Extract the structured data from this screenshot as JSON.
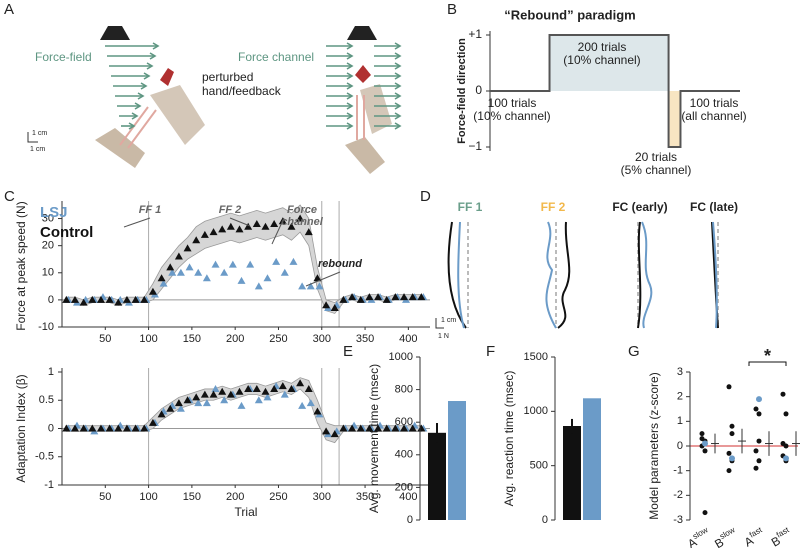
{
  "panel_labels": [
    "A",
    "B",
    "C",
    "D",
    "E",
    "F",
    "G"
  ],
  "diagrams": {
    "A": {
      "force_field": "Force-field",
      "perturbed": [
        "perturbed",
        "hand/feedback"
      ],
      "force_channel": "Force channel",
      "scale": [
        "1 cm",
        "1 cm"
      ]
    },
    "D": {
      "titles": [
        "FF 1",
        "FF 2",
        "FC (early)",
        "FC (late)"
      ],
      "scale": [
        "1 cm",
        "1 N"
      ]
    }
  },
  "chart_data": [
    {
      "type": "step",
      "title": "“Rebound” paradigm",
      "y_label": "Force-field direction",
      "x": [
        0,
        100,
        100,
        300,
        300,
        320,
        320,
        420
      ],
      "values": [
        0,
        0,
        1,
        1,
        -1,
        -1,
        0,
        0
      ],
      "xlim": [
        0,
        420
      ],
      "ylim": [
        -1,
        1
      ],
      "yticks": [
        {
          "value": -1,
          "label": "−1"
        },
        0,
        {
          "value": 1,
          "label": "+1"
        }
      ],
      "color": "#555",
      "annotations": [
        [
          "100 trials",
          "(10% channel)"
        ],
        [
          "200 trials",
          "(10% channel)"
        ],
        [
          "20 trials",
          "(5% channel)"
        ],
        [
          "100 trials",
          "(all channel)"
        ]
      ]
    },
    {
      "type": "scatter",
      "y_label": "Force at peak speed (N)",
      "x": [
        5,
        15,
        25,
        35,
        45,
        55,
        65,
        75,
        85,
        95,
        105,
        115,
        125,
        135,
        145,
        155,
        165,
        175,
        185,
        195,
        205,
        215,
        225,
        235,
        245,
        255,
        265,
        275,
        285,
        295,
        305,
        315,
        325,
        335,
        345,
        355,
        365,
        375,
        385,
        395,
        405,
        415
      ],
      "series": [
        {
          "name": "LSJ",
          "color": "#6b9bc8",
          "values": [
            0,
            -1,
            0,
            0,
            1,
            0,
            0,
            -1,
            0,
            0,
            2,
            6,
            10,
            10,
            12,
            10,
            8,
            13,
            10,
            13,
            7,
            13,
            5,
            8,
            14,
            10,
            14,
            5,
            5,
            5,
            -3,
            -2,
            0,
            1,
            0,
            0,
            1,
            0,
            1,
            0,
            1,
            1
          ]
        },
        {
          "name": "Control",
          "color": "#111111",
          "values": [
            0,
            0,
            -1,
            0,
            0,
            0,
            -1,
            0,
            0,
            0,
            3,
            8,
            12,
            16,
            19,
            22,
            24,
            25,
            26,
            27,
            26,
            27,
            28,
            27,
            28,
            29,
            27,
            30,
            25,
            8,
            -2,
            -3,
            0,
            1,
            0,
            1,
            1,
            0,
            1,
            1,
            1,
            1
          ]
        }
      ],
      "band": {
        "lower": [
          -1,
          -1,
          -2,
          -1,
          -1,
          -1,
          -2,
          -1,
          -1,
          -1,
          0,
          4,
          8,
          12,
          15,
          17,
          19,
          20,
          21,
          22,
          21,
          22,
          23,
          22,
          23,
          24,
          22,
          25,
          20,
          4,
          -4,
          -5,
          -1,
          0,
          -1,
          0,
          0,
          -1,
          0,
          0,
          0,
          0
        ],
        "upper": [
          1,
          1,
          0,
          1,
          1,
          1,
          0,
          1,
          1,
          1,
          6,
          12,
          16,
          20,
          23,
          27,
          29,
          30,
          31,
          32,
          31,
          32,
          33,
          32,
          33,
          34,
          32,
          35,
          30,
          12,
          0,
          -1,
          1,
          2,
          1,
          2,
          2,
          1,
          2,
          2,
          2,
          2
        ]
      },
      "xlim": [
        0,
        425
      ],
      "xticks": [
        50,
        100,
        150,
        200,
        250,
        300,
        350,
        400
      ],
      "ylim": [
        -10,
        35
      ],
      "yticks": [
        -10,
        0,
        10,
        20,
        30
      ],
      "vlines": [
        100,
        300,
        320
      ],
      "annotations": [
        [
          "FF 1"
        ],
        [
          "FF 2"
        ],
        [
          "Force",
          "channel"
        ],
        [
          "rebound"
        ]
      ]
    },
    {
      "type": "scatter",
      "y_label": "Adaptation Index (β)",
      "x_label": "Trial",
      "x": [
        5,
        15,
        25,
        35,
        45,
        55,
        65,
        75,
        85,
        95,
        105,
        115,
        125,
        135,
        145,
        155,
        165,
        175,
        185,
        195,
        205,
        215,
        225,
        235,
        245,
        255,
        265,
        275,
        285,
        295,
        305,
        315,
        325,
        335,
        345,
        355,
        365,
        375,
        385,
        395,
        405,
        415
      ],
      "series": [
        {
          "color": "#6b9bc8",
          "values": [
            0,
            0.05,
            0,
            -0.05,
            0,
            0,
            0.05,
            0,
            0,
            0,
            0.1,
            0.3,
            0.4,
            0.35,
            0.5,
            0.45,
            0.45,
            0.7,
            0.5,
            0.6,
            0.4,
            0.7,
            0.5,
            0.55,
            0.75,
            0.6,
            0.7,
            0.4,
            0.45,
            0.25,
            -0.1,
            -0.05,
            0,
            0.05,
            0,
            0,
            0.05,
            0,
            0,
            0,
            0.05,
            0
          ]
        },
        {
          "color": "#111111",
          "values": [
            0,
            0,
            0,
            0,
            0,
            0,
            0,
            0,
            0,
            0,
            0.1,
            0.25,
            0.35,
            0.45,
            0.5,
            0.55,
            0.6,
            0.6,
            0.65,
            0.6,
            0.65,
            0.7,
            0.7,
            0.65,
            0.7,
            0.75,
            0.7,
            0.8,
            0.7,
            0.3,
            -0.05,
            -0.1,
            0,
            0,
            0,
            0,
            0,
            0,
            0,
            0,
            0,
            0
          ]
        }
      ],
      "band": {
        "lower": [
          -0.05,
          -0.05,
          -0.05,
          -0.05,
          -0.05,
          -0.05,
          -0.05,
          -0.05,
          -0.05,
          -0.05,
          0,
          0.15,
          0.25,
          0.35,
          0.4,
          0.45,
          0.5,
          0.5,
          0.55,
          0.5,
          0.55,
          0.6,
          0.6,
          0.55,
          0.6,
          0.65,
          0.6,
          0.7,
          0.55,
          0.1,
          -0.2,
          -0.25,
          -0.05,
          -0.05,
          -0.05,
          -0.05,
          -0.05,
          -0.05,
          -0.05,
          -0.05,
          -0.05,
          -0.05
        ],
        "upper": [
          0.05,
          0.05,
          0.05,
          0.05,
          0.05,
          0.05,
          0.05,
          0.05,
          0.05,
          0.05,
          0.2,
          0.35,
          0.45,
          0.55,
          0.6,
          0.65,
          0.7,
          0.7,
          0.75,
          0.7,
          0.75,
          0.8,
          0.8,
          0.75,
          0.8,
          0.85,
          0.8,
          0.9,
          0.85,
          0.5,
          0.1,
          0.05,
          0.05,
          0.05,
          0.05,
          0.05,
          0.05,
          0.05,
          0.05,
          0.05,
          0.05,
          0.05
        ]
      },
      "xlim": [
        0,
        425
      ],
      "xticks": [
        50,
        100,
        150,
        200,
        250,
        300,
        350,
        400
      ],
      "ylim": [
        -1,
        1
      ],
      "yticks": [
        -1,
        -0.5,
        0,
        0.5,
        1
      ],
      "vlines": [
        100,
        300,
        320
      ]
    },
    {
      "type": "bar",
      "y_label": "Avg. movement time (msec)",
      "categories": [
        null,
        null
      ],
      "values": [
        535,
        730
      ],
      "errors": [
        60,
        null
      ],
      "colors": [
        "#111111",
        "#6b9bc8"
      ],
      "ylim": [
        0,
        1000
      ],
      "yticks": [
        0,
        200,
        400,
        600,
        800,
        1000
      ]
    },
    {
      "type": "bar",
      "y_label": "Avg. reaction time (msec)",
      "categories": [
        null,
        null
      ],
      "values": [
        865,
        1120
      ],
      "errors": [
        65,
        null
      ],
      "colors": [
        "#111111",
        "#6b9bc8"
      ],
      "ylim": [
        0,
        1500
      ],
      "yticks": [
        0,
        500,
        1000,
        1500
      ]
    },
    {
      "type": "dot",
      "y_label": "Model parameters (z-score)",
      "categories": [
        {
          "base": "A",
          "sup": "slow"
        },
        {
          "base": "B",
          "sup": "slow"
        },
        {
          "base": "A",
          "sup": "fast"
        },
        {
          "base": "B",
          "sup": "fast"
        }
      ],
      "series": [
        {
          "color": "#111111",
          "values": [
            [
              0.3,
              0.2,
              0,
              -0.2,
              0.5,
              -2.7
            ],
            [
              2.4,
              0.5,
              -0.3,
              -0.6,
              -1,
              0.8
            ],
            [
              1.5,
              1.3,
              -0.2,
              -0.6,
              -0.9,
              0.2
            ],
            [
              2.1,
              1.3,
              -0.4,
              -0.6,
              0.1,
              0
            ]
          ]
        },
        {
          "color": "#6b9bc8",
          "values": [
            0.1,
            -0.5,
            1.9,
            -0.5
          ]
        }
      ],
      "means": [
        0.1,
        0.2,
        0.1,
        0.1
      ],
      "errors": [
        0.4,
        0.5,
        0.5,
        0.5
      ],
      "ylim": [
        -3,
        3
      ],
      "yticks": [
        -3,
        -2,
        -1,
        0,
        1,
        2,
        3
      ],
      "significance": "*"
    }
  ]
}
